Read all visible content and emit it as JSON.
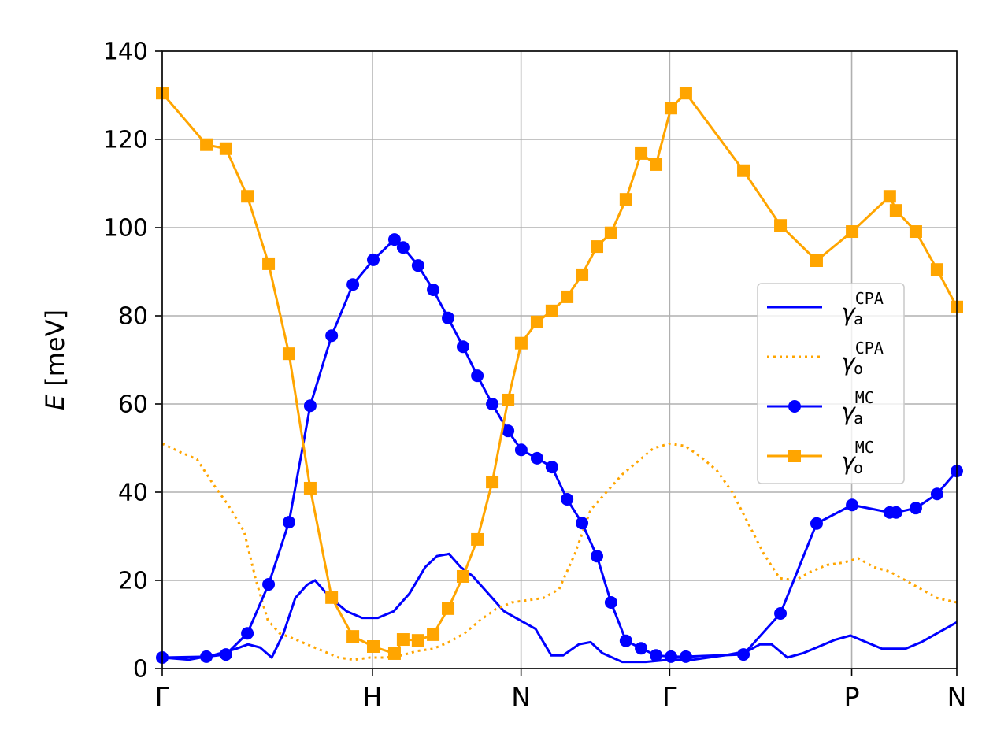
{
  "chart_data": {
    "type": "line",
    "ylabel": [
      "E",
      "[meV]"
    ],
    "xlim": [
      0,
      3.78
    ],
    "ylim": [
      0,
      140
    ],
    "xticks": [
      {
        "value": 0,
        "label": "Γ"
      },
      {
        "value": 1,
        "label": "H"
      },
      {
        "value": 1.707,
        "label": "N"
      },
      {
        "value": 2.414,
        "label": "Γ"
      },
      {
        "value": 3.28,
        "label": "P"
      },
      {
        "value": 3.78,
        "label": "N"
      }
    ],
    "yticks": [
      0,
      20,
      40,
      60,
      80,
      100,
      120,
      140
    ],
    "grid": true,
    "legend": "center right",
    "series": [
      {
        "name": {
          "base": "γ",
          "sub": "a",
          "sup": "CPA"
        },
        "color": "#0000ff",
        "line": "solid",
        "marker": null,
        "x": [
          0,
          0.127,
          0.24,
          0.352,
          0.408,
          0.465,
          0.521,
          0.577,
          0.633,
          0.689,
          0.727,
          0.764,
          0.802,
          0.877,
          0.951,
          1.026,
          1.101,
          1.176,
          1.251,
          1.307,
          1.364,
          1.42,
          1.476,
          1.551,
          1.626,
          1.701,
          1.776,
          1.851,
          1.907,
          1.982,
          2.038,
          2.094,
          2.188,
          2.3,
          2.412,
          2.525,
          2.675,
          2.787,
          2.843,
          2.899,
          2.974,
          3.049,
          3.124,
          3.199,
          3.274,
          3.349,
          3.424,
          3.536,
          3.611,
          3.686,
          3.78
        ],
        "values": [
          2.5,
          2.0,
          3.0,
          4.5,
          5.5,
          4.8,
          2.5,
          8,
          16,
          19,
          20,
          18,
          16,
          13,
          11.5,
          11.5,
          13,
          17,
          23,
          25.5,
          26,
          23,
          21,
          17,
          13,
          11,
          9,
          3,
          3,
          5.5,
          6,
          3.5,
          1.5,
          1.5,
          2,
          2,
          3,
          4,
          5.5,
          5.5,
          2.5,
          3.5,
          5,
          6.5,
          7.5,
          6,
          4.5,
          4.5,
          6,
          8,
          10.5
        ]
      },
      {
        "name": {
          "base": "γ",
          "sub": "o",
          "sup": "CPA"
        },
        "color": "#ffa500",
        "line": "dotted",
        "marker": null,
        "x": [
          0,
          0.09,
          0.165,
          0.24,
          0.315,
          0.39,
          0.446,
          0.502,
          0.558,
          0.614,
          0.689,
          0.764,
          0.839,
          0.914,
          0.989,
          1.064,
          1.139,
          1.214,
          1.289,
          1.364,
          1.438,
          1.513,
          1.588,
          1.663,
          1.738,
          1.813,
          1.888,
          1.963,
          2.038,
          2.113,
          2.188,
          2.263,
          2.338,
          2.412,
          2.487,
          2.562,
          2.637,
          2.712,
          2.787,
          2.862,
          2.937,
          3.012,
          3.087,
          3.162,
          3.237,
          3.311,
          3.386,
          3.461,
          3.536,
          3.611,
          3.686,
          3.78
        ],
        "values": [
          51,
          49,
          47.5,
          42,
          37,
          31,
          20,
          11,
          8,
          7,
          5.5,
          4,
          2.5,
          2,
          2.5,
          2.5,
          3,
          4,
          4.5,
          6,
          8,
          11,
          13.5,
          15,
          15.5,
          16,
          18,
          26,
          36,
          40,
          44,
          47,
          50,
          51,
          50.5,
          48,
          45,
          40,
          33,
          26,
          20.5,
          20,
          22,
          23.5,
          24,
          25,
          23,
          22,
          20,
          18,
          16,
          15
        ]
      },
      {
        "name": {
          "base": "γ",
          "sub": "a",
          "sup": "MC"
        },
        "color": "#0000ff",
        "line": "solid",
        "marker": "circle",
        "x": [
          0,
          0.21,
          0.303,
          0.405,
          0.506,
          0.603,
          0.704,
          0.806,
          0.907,
          1.004,
          1.105,
          1.146,
          1.217,
          1.289,
          1.36,
          1.431,
          1.499,
          1.57,
          1.645,
          1.708,
          1.783,
          1.854,
          1.926,
          1.997,
          2.068,
          2.135,
          2.206,
          2.278,
          2.349,
          2.42,
          2.491,
          2.765,
          2.941,
          3.113,
          3.282,
          3.461,
          3.491,
          3.585,
          3.686,
          3.78
        ],
        "values": [
          2.5,
          2.7,
          3.2,
          8.0,
          19.1,
          33.2,
          59.6,
          75.5,
          87.1,
          92.7,
          97.3,
          95.5,
          91.4,
          85.9,
          79.5,
          73.0,
          66.4,
          60.0,
          53.9,
          49.6,
          47.7,
          45.7,
          38.4,
          33.0,
          25.5,
          15.0,
          6.3,
          4.6,
          3.0,
          2.7,
          2.7,
          3.2,
          12.5,
          32.9,
          37.1,
          35.4,
          35.4,
          36.4,
          39.6,
          44.8
        ]
      },
      {
        "name": {
          "base": "γ",
          "sub": "o",
          "sup": "MC"
        },
        "color": "#ffa500",
        "line": "solid",
        "marker": "square",
        "x": [
          0,
          0.21,
          0.303,
          0.405,
          0.506,
          0.603,
          0.704,
          0.806,
          0.907,
          1.004,
          1.105,
          1.146,
          1.217,
          1.289,
          1.36,
          1.431,
          1.499,
          1.57,
          1.645,
          1.708,
          1.783,
          1.854,
          1.926,
          1.997,
          2.068,
          2.135,
          2.206,
          2.278,
          2.349,
          2.42,
          2.491,
          2.765,
          2.941,
          3.113,
          3.282,
          3.461,
          3.491,
          3.585,
          3.686,
          3.78
        ],
        "values": [
          130.5,
          118.8,
          117.9,
          107.1,
          91.8,
          71.4,
          40.9,
          16.1,
          7.3,
          5.0,
          3.4,
          6.6,
          6.4,
          7.7,
          13.6,
          20.9,
          29.3,
          42.3,
          60.9,
          73.8,
          78.6,
          81.1,
          84.3,
          89.3,
          95.7,
          98.8,
          106.4,
          116.8,
          114.3,
          127.1,
          130.5,
          112.9,
          100.5,
          92.5,
          99.1,
          107.1,
          103.9,
          99.1,
          90.5,
          82.0
        ]
      }
    ]
  }
}
